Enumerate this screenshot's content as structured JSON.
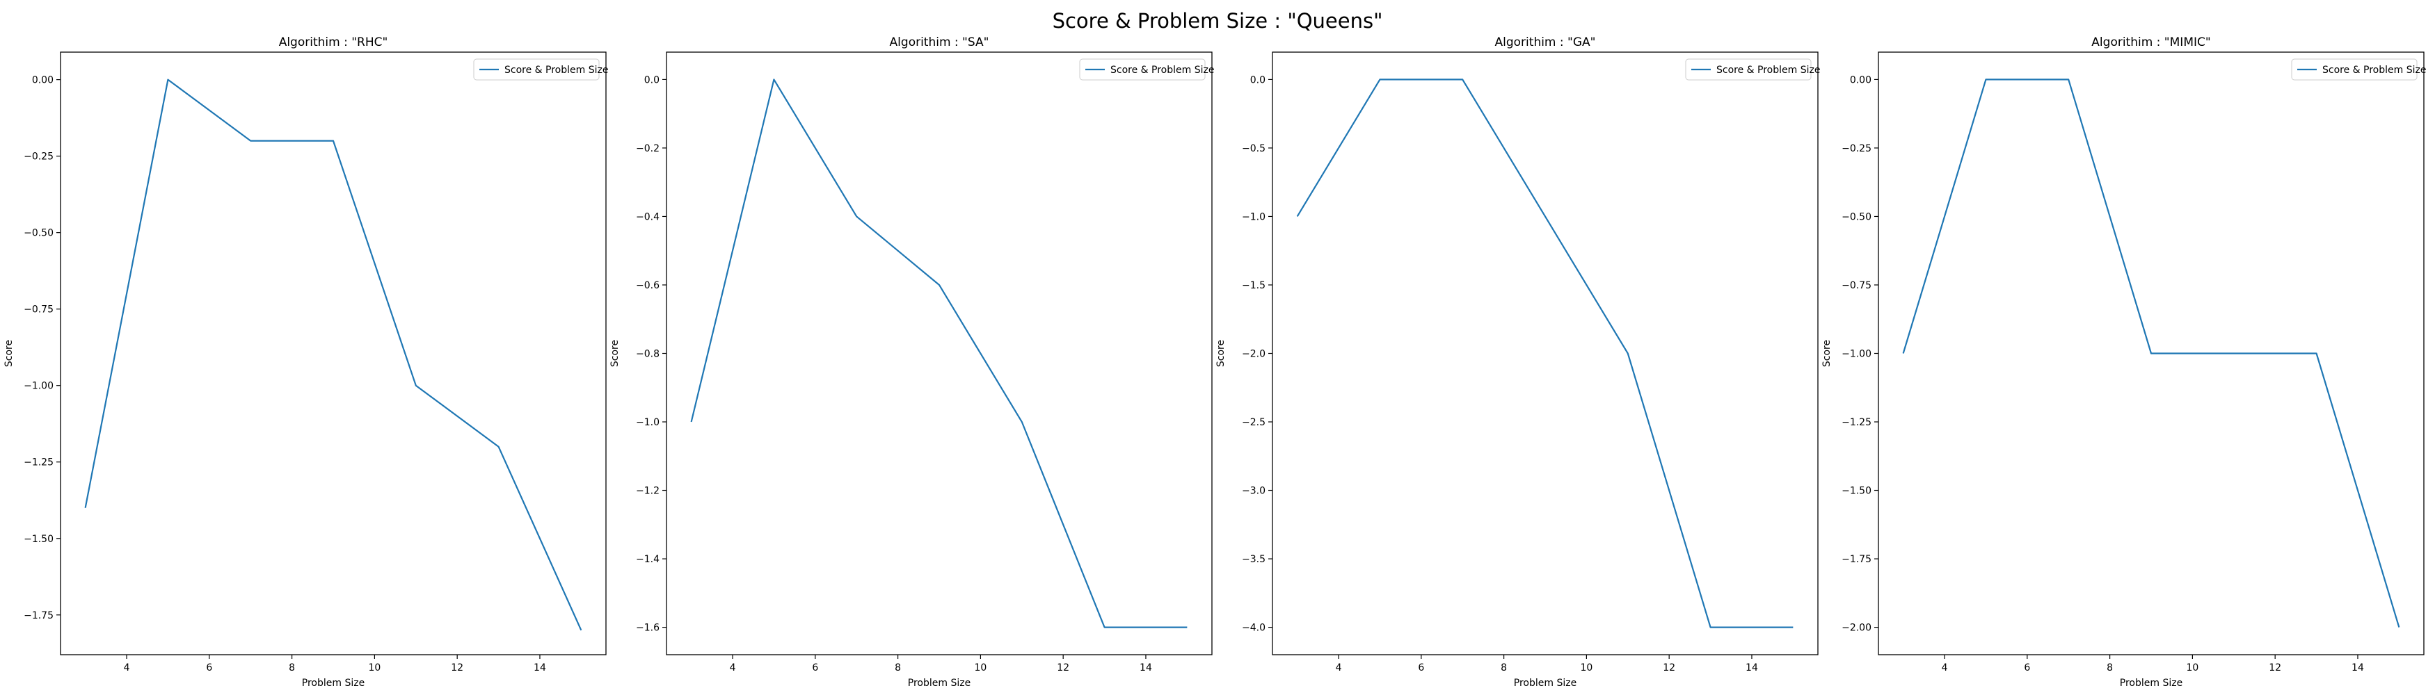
{
  "figure": {
    "suptitle": "Score & Problem Size : \"Queens\""
  },
  "colors": {
    "line": "#1f77b4",
    "axes": "#000000",
    "legend_border": "#cccccc"
  },
  "chart_data": [
    {
      "type": "line",
      "title": "Algorithim : \"RHC\"",
      "xlabel": "Problem Size",
      "ylabel": "Score",
      "xlim": [
        2.4,
        15.6
      ],
      "ylim": [
        -1.88,
        0.09
      ],
      "xticks": [
        4,
        6,
        8,
        10,
        12,
        14
      ],
      "xtick_labels": [
        "4",
        "6",
        "8",
        "10",
        "12",
        "14"
      ],
      "yticks": [
        0.0,
        -0.25,
        -0.5,
        -0.75,
        -1.0,
        -1.25,
        -1.5,
        -1.75
      ],
      "ytick_labels": [
        "0.00",
        "−0.25",
        "−0.50",
        "−0.75",
        "−1.00",
        "−1.25",
        "−1.50",
        "−1.75"
      ],
      "legend_position": "top-right",
      "grid": false,
      "series": [
        {
          "name": "Score & Problem Size",
          "x": [
            3,
            5,
            7,
            9,
            11,
            13,
            15
          ],
          "y": [
            -1.4,
            0.0,
            -0.2,
            -0.2,
            -1.0,
            -1.2,
            -1.8
          ]
        }
      ]
    },
    {
      "type": "line",
      "title": "Algorithim : \"SA\"",
      "xlabel": "Problem Size",
      "ylabel": "Score",
      "xlim": [
        2.4,
        15.6
      ],
      "ylim": [
        -1.68,
        0.08
      ],
      "xticks": [
        4,
        6,
        8,
        10,
        12,
        14
      ],
      "xtick_labels": [
        "4",
        "6",
        "8",
        "10",
        "12",
        "14"
      ],
      "yticks": [
        0.0,
        -0.2,
        -0.4,
        -0.6,
        -0.8,
        -1.0,
        -1.2,
        -1.4,
        -1.6
      ],
      "ytick_labels": [
        "0.0",
        "−0.2",
        "−0.4",
        "−0.6",
        "−0.8",
        "−1.0",
        "−1.2",
        "−1.4",
        "−1.6"
      ],
      "legend_position": "top-right",
      "grid": false,
      "series": [
        {
          "name": "Score & Problem Size",
          "x": [
            3,
            5,
            7,
            9,
            11,
            13,
            15
          ],
          "y": [
            -1.0,
            0.0,
            -0.4,
            -0.6,
            -1.0,
            -1.6,
            -1.6
          ]
        }
      ]
    },
    {
      "type": "line",
      "title": "Algorithim : \"GA\"",
      "xlabel": "Problem Size",
      "ylabel": "Score",
      "xlim": [
        2.4,
        15.6
      ],
      "ylim": [
        -4.2,
        0.2
      ],
      "xticks": [
        4,
        6,
        8,
        10,
        12,
        14
      ],
      "xtick_labels": [
        "4",
        "6",
        "8",
        "10",
        "12",
        "14"
      ],
      "yticks": [
        0.0,
        -0.5,
        -1.0,
        -1.5,
        -2.0,
        -2.5,
        -3.0,
        -3.5,
        -4.0
      ],
      "ytick_labels": [
        "0.0",
        "−0.5",
        "−1.0",
        "−1.5",
        "−2.0",
        "−2.5",
        "−3.0",
        "−3.5",
        "−4.0"
      ],
      "legend_position": "top-right",
      "grid": false,
      "series": [
        {
          "name": "Score & Problem Size",
          "x": [
            3,
            5,
            7,
            9,
            11,
            13,
            15
          ],
          "y": [
            -1.0,
            0.0,
            0.0,
            -1.0,
            -2.0,
            -4.0,
            -4.0
          ]
        }
      ]
    },
    {
      "type": "line",
      "title": "Algorithim : \"MIMIC\"",
      "xlabel": "Problem Size",
      "ylabel": "Score",
      "xlim": [
        2.4,
        15.6
      ],
      "ylim": [
        -2.1,
        0.1
      ],
      "xticks": [
        4,
        6,
        8,
        10,
        12,
        14
      ],
      "xtick_labels": [
        "4",
        "6",
        "8",
        "10",
        "12",
        "14"
      ],
      "yticks": [
        0.0,
        -0.25,
        -0.5,
        -0.75,
        -1.0,
        -1.25,
        -1.5,
        -1.75,
        -2.0
      ],
      "ytick_labels": [
        "0.00",
        "−0.25",
        "−0.50",
        "−0.75",
        "−1.00",
        "−1.25",
        "−1.50",
        "−1.75",
        "−2.00"
      ],
      "legend_position": "top-right",
      "grid": false,
      "series": [
        {
          "name": "Score & Problem Size",
          "x": [
            3,
            5,
            7,
            9,
            11,
            13,
            15
          ],
          "y": [
            -1.0,
            0.0,
            0.0,
            -1.0,
            -1.0,
            -1.0,
            -2.0
          ]
        }
      ]
    }
  ]
}
